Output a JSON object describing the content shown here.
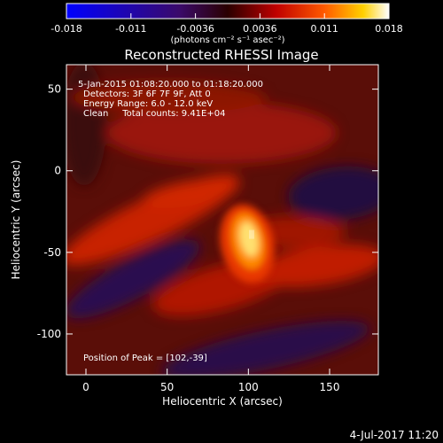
{
  "colorbar": {
    "ticks": [
      "-0.018",
      "-0.011",
      "-0.0036",
      "0.0036",
      "0.011",
      "0.018"
    ],
    "unit_label": "(photons cm⁻² s⁻¹ asec⁻²)"
  },
  "info": {
    "time_range": "5-Jan-2015 01:08:20.000 to 01:18:20.000",
    "detectors": "Detectors: 3F 6F 7F 9F, Att 0",
    "energy": "Energy Range: 6.0 - 12.0 keV",
    "clean": "Clean     Total counts: 9.41E+04",
    "peak": "Position of Peak = [102,-39]"
  },
  "footer": {
    "date": "4-Jul-2017 11:20"
  },
  "chart_data": {
    "type": "heatmap",
    "title": "Reconstructed RHESSI Image",
    "xlabel": "Heliocentric X (arcsec)",
    "ylabel": "Heliocentric Y (arcsec)",
    "xlim": [
      -12,
      180
    ],
    "ylim": [
      -125,
      65
    ],
    "xticks": [
      0,
      50,
      100,
      150
    ],
    "yticks": [
      50,
      0,
      -50,
      -100
    ],
    "color_range": [
      -0.018,
      0.018
    ],
    "colormap": [
      "#0000ff",
      "#000000",
      "#800000",
      "#ff2000",
      "#ffa000",
      "#ffffff"
    ],
    "peak": [
      102,
      -39
    ],
    "peak_value": 0.018
  }
}
